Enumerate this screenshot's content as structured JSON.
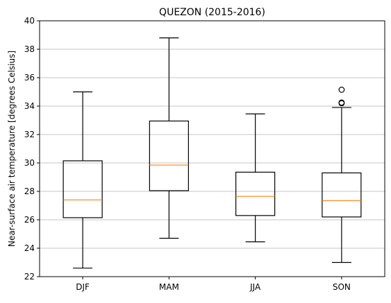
{
  "chart_data": {
    "type": "box",
    "title": "QUEZON (2015-2016)",
    "xlabel": "",
    "ylabel": "Near-surface air temperature [degrees Celsius]",
    "ylim": [
      22,
      40
    ],
    "yticks": [
      22,
      24,
      26,
      28,
      30,
      32,
      34,
      36,
      38,
      40
    ],
    "grid": "y",
    "colors": {
      "box": "#000000",
      "median": "#ff7f0e",
      "grid": "#b0b0b0"
    },
    "categories": [
      "DJF",
      "MAM",
      "JJA",
      "SON"
    ],
    "boxes": [
      {
        "category": "DJF",
        "whisker_low": 22.6,
        "q1": 26.15,
        "median": 27.4,
        "q3": 30.15,
        "whisker_high": 35.0,
        "outliers": []
      },
      {
        "category": "MAM",
        "whisker_low": 24.7,
        "q1": 28.05,
        "median": 29.85,
        "q3": 32.95,
        "whisker_high": 38.8,
        "outliers": []
      },
      {
        "category": "JJA",
        "whisker_low": 24.45,
        "q1": 26.3,
        "median": 27.65,
        "q3": 29.35,
        "whisker_high": 33.45,
        "outliers": []
      },
      {
        "category": "SON",
        "whisker_low": 23.0,
        "q1": 26.2,
        "median": 27.35,
        "q3": 29.3,
        "whisker_high": 33.9,
        "outliers": [
          34.2,
          34.25,
          35.15
        ]
      }
    ]
  }
}
